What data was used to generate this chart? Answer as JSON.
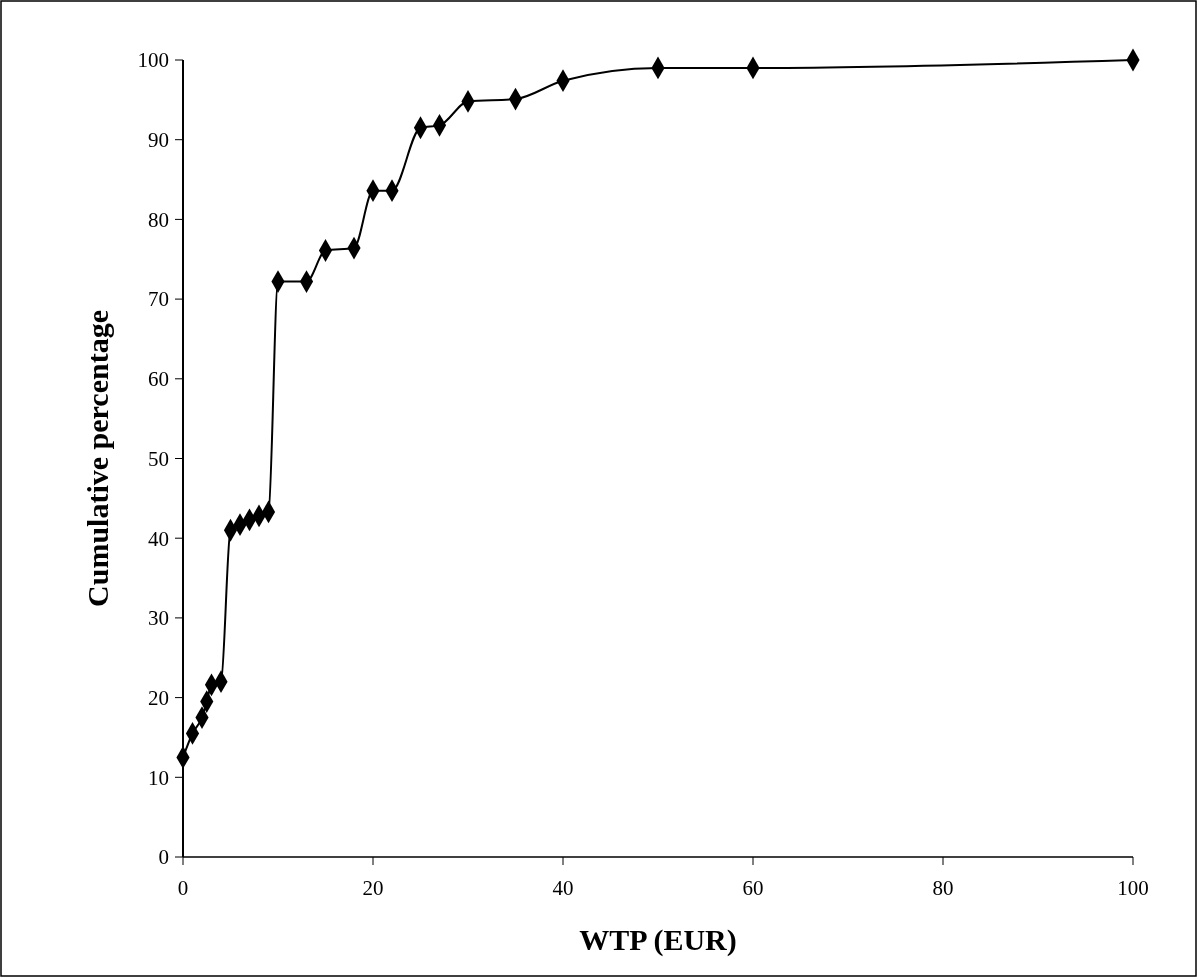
{
  "chart_data": {
    "type": "line",
    "xlabel": "WTP (EUR)",
    "ylabel": "Cumulative percentage",
    "x": [
      0,
      1,
      2,
      2.5,
      3,
      4,
      5,
      6,
      7,
      8,
      9,
      10,
      13,
      15,
      18,
      20,
      22,
      25,
      27,
      30,
      35,
      40,
      50,
      60,
      100
    ],
    "series": [
      {
        "color": "#000000",
        "values": [
          12.5,
          15.5,
          17.5,
          19.5,
          21.6,
          22,
          41,
          41.7,
          42.3,
          42.8,
          43.3,
          72.2,
          72.2,
          76.1,
          76.4,
          83.6,
          83.6,
          91.5,
          91.8,
          94.8,
          95.1,
          97.4,
          99,
          99,
          100
        ]
      }
    ],
    "xlim": [
      0,
      100
    ],
    "xticks": [
      0,
      20,
      40,
      60,
      80,
      100
    ],
    "ylim": [
      0,
      100
    ],
    "yticks": [
      0,
      10,
      20,
      30,
      40,
      50,
      60,
      70,
      80,
      90,
      100
    ],
    "marker": "diamond",
    "line_style": "solid",
    "grid": false
  }
}
